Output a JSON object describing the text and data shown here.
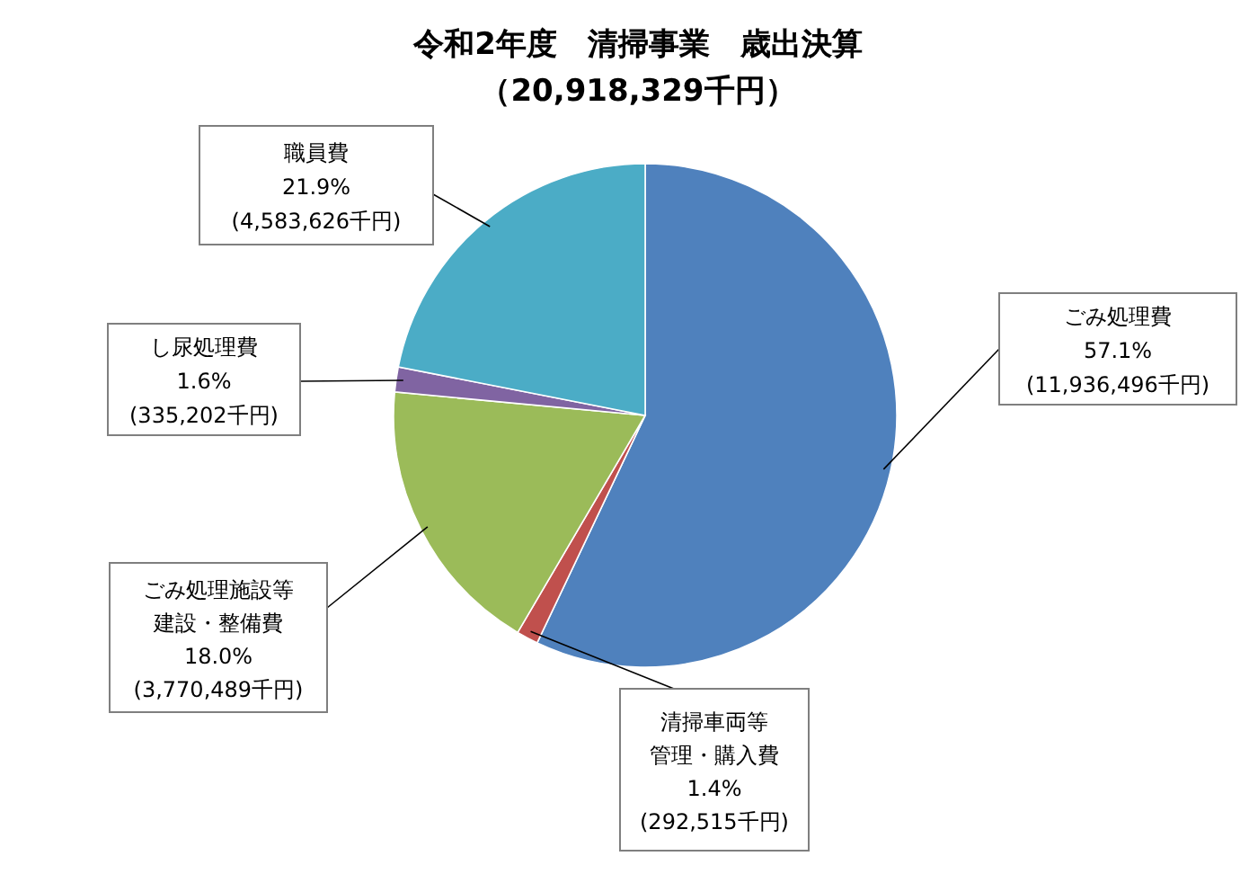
{
  "chart_data": {
    "type": "pie",
    "title": "令和2年度　清掃事業　歳出決算",
    "subtitle": "（20,918,329千円）",
    "categories": [
      "ごみ処理費",
      "清掃車両等管理・購入費",
      "ごみ処理施設等建設・整備費",
      "し尿処理費",
      "職員費"
    ],
    "values": [
      11936496,
      292515,
      3770489,
      335202,
      4583626
    ],
    "colors": [
      "#4f81bd",
      "#c0504d",
      "#9bbb59",
      "#8064a2",
      "#4bacc6"
    ],
    "value_labels": [
      "57.1%\n(11,936,496千円)",
      "1.4%\n(292,515千円)",
      "18.0%\n(3,770,489千円)",
      "1.6%\n(335,202千円)",
      "21.9%\n(4,583,626千円)"
    ]
  }
}
